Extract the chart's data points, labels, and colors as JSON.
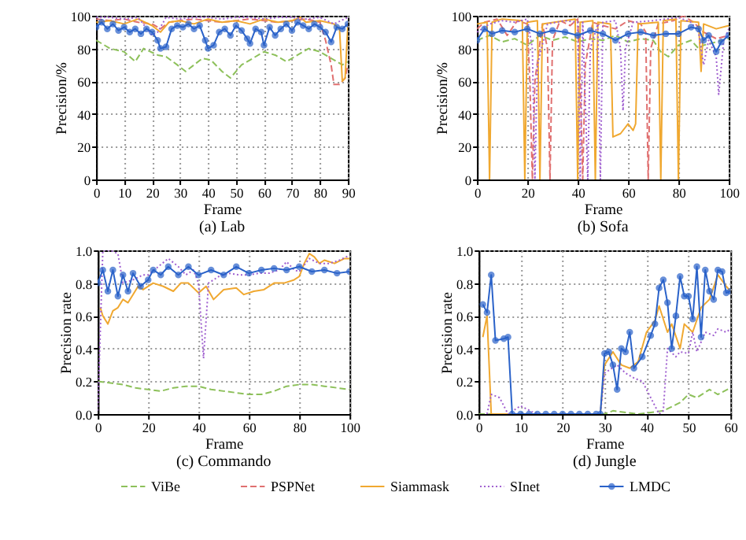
{
  "chart_data": [
    {
      "type": "line",
      "title": "(a) Lab",
      "xlabel": "Frame",
      "ylabel": "Precision/%",
      "xlim": [
        0,
        90
      ],
      "xticks": [
        0,
        10,
        20,
        30,
        40,
        50,
        60,
        70,
        80,
        90
      ],
      "ylim": [
        0,
        100
      ],
      "yticks": [
        0,
        20,
        40,
        60,
        80,
        100
      ],
      "grid": true,
      "legend": "bottom",
      "series": [
        {
          "name": "ViBe",
          "color": "#8dc05a",
          "line_style": "dashed",
          "x": [
            0,
            5,
            10,
            14,
            17,
            22,
            25,
            29,
            32,
            35,
            38,
            41,
            45,
            48,
            52,
            56,
            60,
            64,
            68,
            72,
            76,
            80,
            84,
            88,
            90
          ],
          "values": [
            85,
            80,
            78,
            72,
            80,
            76,
            75,
            70,
            66,
            70,
            74,
            73,
            66,
            62,
            70,
            74,
            78,
            76,
            72,
            76,
            80,
            78,
            74,
            70,
            72
          ]
        },
        {
          "name": "PSPNet",
          "color": "#e07070",
          "line_style": "dashed",
          "x": [
            0,
            5,
            10,
            15,
            20,
            23,
            26,
            30,
            35,
            40,
            45,
            50,
            55,
            60,
            65,
            70,
            75,
            80,
            82,
            84,
            85,
            87,
            89,
            90
          ],
          "values": [
            98,
            97,
            98,
            96,
            95,
            92,
            96,
            97,
            98,
            97,
            96,
            97,
            98,
            97,
            96,
            97,
            98,
            96,
            85,
            70,
            58,
            58,
            62,
            70
          ]
        },
        {
          "name": "Siammask",
          "color": "#f0a830",
          "line_style": "solid",
          "x": [
            0,
            5,
            10,
            15,
            20,
            23,
            26,
            30,
            35,
            40,
            45,
            50,
            55,
            60,
            65,
            70,
            73,
            75,
            80,
            85,
            87,
            88,
            89,
            90
          ],
          "values": [
            96,
            97,
            95,
            98,
            94,
            90,
            96,
            97,
            95,
            98,
            96,
            97,
            95,
            98,
            96,
            97,
            99,
            96,
            97,
            95,
            92,
            60,
            62,
            95
          ]
        },
        {
          "name": "SInet",
          "color": "#a060d0",
          "line_style": "dotted",
          "x": [
            0,
            5,
            10,
            15,
            20,
            22,
            25,
            30,
            35,
            40,
            45,
            50,
            55,
            60,
            65,
            70,
            75,
            80,
            85,
            90
          ],
          "values": [
            99,
            99,
            98,
            99,
            88,
            90,
            99,
            98,
            99,
            99,
            98,
            99,
            99,
            98,
            99,
            99,
            98,
            99,
            95,
            99
          ]
        },
        {
          "name": "LMDC",
          "color": "#2a62c9",
          "line_style": "solid",
          "marker": "circle",
          "x": [
            0,
            2,
            4,
            6,
            8,
            10,
            12,
            14,
            16,
            18,
            20,
            22,
            23,
            25,
            27,
            29,
            31,
            33,
            35,
            37,
            39,
            40,
            42,
            44,
            46,
            48,
            50,
            52,
            54,
            55,
            57,
            59,
            60,
            62,
            64,
            66,
            68,
            70,
            72,
            74,
            76,
            78,
            80,
            82,
            84,
            86,
            88,
            90
          ],
          "values": [
            93,
            96,
            92,
            95,
            91,
            93,
            90,
            92,
            89,
            92,
            90,
            85,
            80,
            81,
            92,
            94,
            93,
            95,
            92,
            94,
            85,
            80,
            82,
            90,
            92,
            88,
            94,
            91,
            86,
            83,
            92,
            90,
            82,
            93,
            88,
            92,
            95,
            91,
            96,
            94,
            92,
            95,
            93,
            90,
            84,
            93,
            92,
            95
          ]
        }
      ]
    },
    {
      "type": "line",
      "title": "(b) Sofa",
      "xlabel": "Frame",
      "ylabel": "Precision/%",
      "xlim": [
        0,
        100
      ],
      "xticks": [
        0,
        20,
        40,
        60,
        80,
        100
      ],
      "ylim": [
        0,
        100
      ],
      "yticks": [
        0,
        20,
        40,
        60,
        80,
        100
      ],
      "grid": true,
      "legend": "bottom",
      "series": [
        {
          "name": "ViBe",
          "color": "#8dc05a",
          "line_style": "dashed",
          "x": [
            0,
            5,
            10,
            15,
            20,
            25,
            30,
            35,
            40,
            45,
            50,
            55,
            60,
            65,
            70,
            73,
            76,
            80,
            85,
            88,
            90,
            95,
            100
          ],
          "values": [
            85,
            88,
            84,
            86,
            82,
            88,
            85,
            87,
            84,
            86,
            85,
            88,
            84,
            86,
            85,
            78,
            75,
            82,
            85,
            80,
            82,
            84,
            86
          ]
        },
        {
          "name": "PSPNet",
          "color": "#e07070",
          "line_style": "dashed",
          "x": [
            0,
            3,
            8,
            12,
            16,
            20,
            21,
            22,
            23,
            26,
            28,
            29,
            30,
            33,
            37,
            40,
            41,
            42,
            43,
            46,
            50,
            55,
            60,
            65,
            67,
            68,
            69,
            72,
            78,
            82,
            86,
            90,
            95,
            100
          ],
          "values": [
            92,
            96,
            98,
            88,
            97,
            95,
            60,
            0,
            60,
            95,
            80,
            0,
            85,
            97,
            94,
            98,
            60,
            0,
            70,
            96,
            94,
            92,
            97,
            95,
            90,
            0,
            80,
            95,
            97,
            100,
            96,
            90,
            86,
            88
          ]
        },
        {
          "name": "Siammask",
          "color": "#f0a830",
          "line_style": "solid",
          "x": [
            0,
            4,
            5,
            6,
            10,
            18,
            19,
            20,
            24,
            25,
            26,
            35,
            39,
            40,
            41,
            46,
            47,
            48,
            53,
            54,
            57,
            60,
            62,
            63,
            64,
            72,
            73,
            74,
            79,
            80,
            81,
            88,
            89,
            90,
            95,
            100
          ],
          "values": [
            95,
            96,
            0,
            96,
            98,
            97,
            0,
            96,
            97,
            0,
            95,
            97,
            98,
            0,
            96,
            97,
            0,
            96,
            95,
            26,
            28,
            34,
            30,
            34,
            95,
            96,
            0,
            97,
            98,
            0,
            97,
            96,
            66,
            95,
            92,
            94
          ]
        },
        {
          "name": "SInet",
          "color": "#a060d0",
          "line_style": "dotted",
          "x": [
            0,
            5,
            10,
            15,
            20,
            22,
            23,
            24,
            28,
            35,
            40,
            41,
            42,
            44,
            45,
            48,
            49,
            50,
            55,
            57,
            58,
            59,
            62,
            70,
            75,
            80,
            85,
            88,
            90,
            92,
            95,
            96,
            98,
            100
          ],
          "values": [
            90,
            95,
            97,
            96,
            98,
            80,
            0,
            70,
            95,
            97,
            96,
            0,
            96,
            0,
            80,
            95,
            0,
            96,
            97,
            80,
            42,
            80,
            96,
            97,
            98,
            99,
            96,
            90,
            70,
            85,
            75,
            52,
            85,
            92
          ]
        },
        {
          "name": "LMDC",
          "color": "#2a62c9",
          "line_style": "solid",
          "marker": "circle",
          "x": [
            0,
            3,
            6,
            10,
            15,
            20,
            25,
            30,
            35,
            40,
            45,
            50,
            55,
            60,
            65,
            70,
            75,
            80,
            85,
            88,
            90,
            92,
            95,
            97,
            100
          ],
          "values": [
            85,
            92,
            89,
            91,
            90,
            92,
            89,
            91,
            90,
            88,
            91,
            89,
            85,
            89,
            90,
            88,
            89,
            89,
            93,
            92,
            85,
            88,
            78,
            84,
            88
          ]
        }
      ]
    },
    {
      "type": "line",
      "title": "(c) Commando",
      "xlabel": "Frame",
      "ylabel": "Precision rate",
      "xlim": [
        0,
        100
      ],
      "xticks": [
        0,
        20,
        40,
        60,
        80,
        100
      ],
      "ylim": [
        0,
        1
      ],
      "yticks": [
        {
          "value": 0,
          "label": "0.0"
        },
        {
          "value": 0.2,
          "label": "0.2"
        },
        {
          "value": 0.4,
          "label": "0.4"
        },
        {
          "value": 0.6,
          "label": "0.6"
        },
        {
          "value": 0.8,
          "label": "0.8"
        },
        {
          "value": 1,
          "label": "1.0"
        }
      ],
      "grid": true,
      "legend": "bottom",
      "series": [
        {
          "name": "ViBe",
          "color": "#8dc05a",
          "line_style": "dashed",
          "x": [
            0,
            5,
            10,
            15,
            20,
            25,
            30,
            35,
            40,
            45,
            50,
            55,
            60,
            65,
            70,
            75,
            80,
            85,
            90,
            95,
            100
          ],
          "values": [
            0.2,
            0.19,
            0.18,
            0.16,
            0.15,
            0.14,
            0.16,
            0.17,
            0.17,
            0.15,
            0.14,
            0.13,
            0.12,
            0.12,
            0.14,
            0.17,
            0.18,
            0.18,
            0.17,
            0.16,
            0.15
          ]
        },
        {
          "name": "Siammask",
          "color": "#f0a830",
          "line_style": "solid",
          "x": [
            1,
            2,
            4,
            6,
            8,
            10,
            12,
            14,
            16,
            18,
            22,
            26,
            30,
            33,
            36,
            40,
            43,
            46,
            50,
            55,
            58,
            62,
            66,
            70,
            74,
            78,
            80,
            82,
            84,
            86,
            88,
            90,
            94,
            98,
            100
          ],
          "values": [
            0.65,
            0.6,
            0.55,
            0.63,
            0.65,
            0.7,
            0.68,
            0.73,
            0.78,
            0.76,
            0.8,
            0.78,
            0.75,
            0.8,
            0.8,
            0.74,
            0.78,
            0.7,
            0.76,
            0.77,
            0.73,
            0.75,
            0.76,
            0.8,
            0.8,
            0.82,
            0.84,
            0.92,
            0.98,
            0.96,
            0.92,
            0.94,
            0.92,
            0.95,
            0.95
          ]
        },
        {
          "name": "SInet",
          "color": "#a060d0",
          "line_style": "dotted",
          "x": [
            0,
            2,
            5,
            8,
            10,
            14,
            18,
            20,
            24,
            28,
            32,
            35,
            38,
            40,
            42,
            44,
            48,
            52,
            56,
            60,
            64,
            68,
            72,
            75,
            78,
            80,
            84,
            88,
            92,
            96,
            100
          ],
          "values": [
            0.02,
            1,
            1,
            0.98,
            0.8,
            0.82,
            0.85,
            0.85,
            0.9,
            0.95,
            0.9,
            0.85,
            0.88,
            0.8,
            0.34,
            0.8,
            0.84,
            0.86,
            0.85,
            0.85,
            0.86,
            0.86,
            0.88,
            0.93,
            0.88,
            0.87,
            0.95,
            0.92,
            0.92,
            0.94,
            0.97
          ]
        },
        {
          "name": "LMDC",
          "color": "#2a62c9",
          "line_style": "solid",
          "marker": "circle",
          "x": [
            0,
            2,
            4,
            6,
            8,
            10,
            12,
            14,
            17,
            20,
            22,
            25,
            28,
            32,
            36,
            40,
            45,
            50,
            55,
            60,
            65,
            70,
            75,
            80,
            85,
            90,
            95,
            100
          ],
          "values": [
            0.8,
            0.88,
            0.75,
            0.88,
            0.72,
            0.85,
            0.75,
            0.86,
            0.78,
            0.82,
            0.88,
            0.85,
            0.9,
            0.85,
            0.9,
            0.85,
            0.88,
            0.85,
            0.9,
            0.86,
            0.88,
            0.89,
            0.88,
            0.9,
            0.87,
            0.88,
            0.86,
            0.87
          ]
        }
      ]
    },
    {
      "type": "line",
      "title": "(d) Jungle",
      "xlabel": "Frame",
      "ylabel": "Precision rate",
      "xlim": [
        0,
        60
      ],
      "xticks": [
        0,
        10,
        20,
        30,
        40,
        50,
        60
      ],
      "ylim": [
        0,
        1
      ],
      "yticks": [
        {
          "value": 0,
          "label": "0.0"
        },
        {
          "value": 0.2,
          "label": "0.2"
        },
        {
          "value": 0.4,
          "label": "0.4"
        },
        {
          "value": 0.6,
          "label": "0.6"
        },
        {
          "value": 0.8,
          "label": "0.8"
        },
        {
          "value": 1,
          "label": "1.0"
        }
      ],
      "grid": true,
      "legend": "bottom",
      "series": [
        {
          "name": "ViBe",
          "color": "#8dc05a",
          "line_style": "dashed",
          "x": [
            0,
            30,
            32,
            38,
            44,
            48,
            50,
            52,
            55,
            57,
            60
          ],
          "values": [
            0,
            0,
            0.02,
            0,
            0.02,
            0.07,
            0.12,
            0.1,
            0.15,
            0.12,
            0.16
          ]
        },
        {
          "name": "Siammask",
          "color": "#f0a830",
          "line_style": "solid",
          "x": [
            1,
            2,
            3,
            29,
            30,
            32,
            34,
            36,
            38,
            40,
            42,
            43,
            45,
            46,
            48,
            49,
            51,
            53,
            55,
            57,
            59,
            60
          ],
          "values": [
            0.47,
            0.6,
            0,
            0,
            0.3,
            0.38,
            0.3,
            0.28,
            0.32,
            0.5,
            0.57,
            0.66,
            0.5,
            0.55,
            0.4,
            0.55,
            0.5,
            0.65,
            0.7,
            0.85,
            0.78,
            0.75
          ]
        },
        {
          "name": "SInet",
          "color": "#a060d0",
          "line_style": "dotted",
          "x": [
            2,
            3,
            5,
            7,
            10,
            13,
            15,
            29,
            30,
            33,
            35,
            37,
            39,
            41,
            43,
            44,
            45,
            47,
            48,
            50,
            51,
            52,
            54,
            56,
            57,
            59,
            60
          ],
          "values": [
            0,
            0.12,
            0.1,
            0,
            0.05,
            0.01,
            0,
            0,
            0.25,
            0.3,
            0.25,
            0.22,
            0.2,
            0.1,
            0,
            0.02,
            0.4,
            0.35,
            0.38,
            0.37,
            0.5,
            0.38,
            0.5,
            0.48,
            0.52,
            0.5,
            0.52
          ]
        },
        {
          "name": "LMDC",
          "color": "#2a62c9",
          "line_style": "solid",
          "marker": "circle",
          "x": [
            1,
            2,
            3,
            4,
            6,
            7,
            8,
            10,
            12,
            14,
            16,
            18,
            20,
            22,
            24,
            26,
            28,
            29,
            30,
            31,
            32,
            33,
            34,
            35,
            36,
            37,
            39,
            41,
            42,
            43,
            44,
            45,
            46,
            47,
            48,
            49,
            50,
            51,
            52,
            53,
            54,
            55,
            56,
            57,
            58,
            59,
            60
          ],
          "values": [
            0.67,
            0.62,
            0.85,
            0.45,
            0.46,
            0.47,
            0,
            0,
            0,
            0,
            0,
            0,
            0,
            0,
            0,
            0,
            0,
            0,
            0.37,
            0.38,
            0.3,
            0.15,
            0.4,
            0.38,
            0.5,
            0.28,
            0.35,
            0.48,
            0.55,
            0.77,
            0.82,
            0.68,
            0.4,
            0.6,
            0.84,
            0.72,
            0.72,
            0.58,
            0.9,
            0.47,
            0.88,
            0.75,
            0.7,
            0.88,
            0.87,
            0.74,
            0.75
          ]
        }
      ]
    }
  ]
}
